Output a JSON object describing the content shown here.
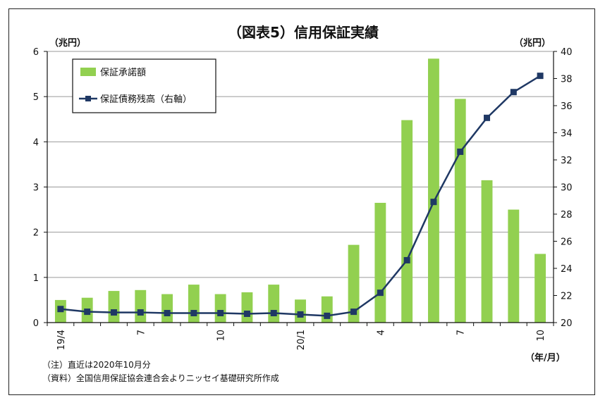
{
  "chart_data": {
    "type": "bar+line",
    "title": "（図表5）信用保証実績",
    "y_left_unit": "（兆円）",
    "y_right_unit": "（兆円）",
    "x_unit": "（年/月）",
    "y_left_range": [
      0,
      6
    ],
    "y_left_ticks": [
      "0",
      "1",
      "2",
      "3",
      "4",
      "5",
      "6"
    ],
    "y_right_range": [
      20,
      40
    ],
    "y_right_ticks": [
      "20",
      "22",
      "24",
      "26",
      "28",
      "30",
      "32",
      "34",
      "36",
      "38",
      "40"
    ],
    "gridlines": true,
    "legend_position": "top-left",
    "categories": [
      "19/4",
      "19/5",
      "19/6",
      "19/7",
      "19/8",
      "19/9",
      "19/10",
      "19/11",
      "19/12",
      "20/1",
      "20/2",
      "20/3",
      "20/4",
      "20/5",
      "20/6",
      "20/7",
      "20/8",
      "20/9",
      "20/10"
    ],
    "x_tick_labels": [
      "19/4",
      "",
      "",
      "7",
      "",
      "",
      "10",
      "",
      "",
      "20/1",
      "",
      "",
      "4",
      "",
      "",
      "7",
      "",
      "",
      "10"
    ],
    "series": [
      {
        "name": "保証承諾額",
        "type": "bar",
        "axis": "left",
        "color": "#92d050",
        "values": [
          0.5,
          0.55,
          0.7,
          0.72,
          0.63,
          0.84,
          0.63,
          0.67,
          0.84,
          0.51,
          0.58,
          1.72,
          2.65,
          4.48,
          5.84,
          4.95,
          3.15,
          2.5,
          1.52
        ]
      },
      {
        "name": "保証債務残高（右軸）",
        "type": "line",
        "axis": "right",
        "color": "#1f3864",
        "values": [
          21.0,
          20.8,
          20.75,
          20.75,
          20.7,
          20.7,
          20.7,
          20.65,
          20.7,
          20.6,
          20.5,
          20.8,
          22.2,
          24.6,
          28.9,
          32.6,
          35.1,
          37.0,
          38.2
        ]
      }
    ],
    "notes": [
      "（注）直近は2020年10月分",
      "（資料）全国信用保証協会連合会よりニッセイ基礎研究所作成"
    ]
  }
}
